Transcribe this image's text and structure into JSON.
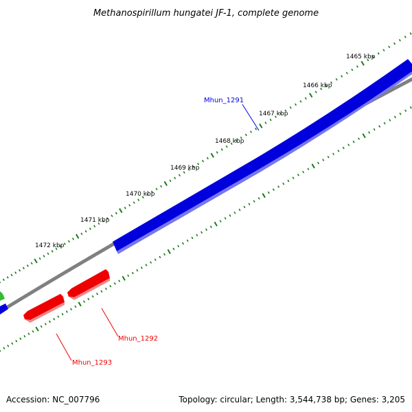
{
  "title": "Methanospirillum hungatei JF-1, complete genome",
  "footer": {
    "accession": "Accession: NC_007796",
    "summary": "Topology: circular; Length: 3,544,738 bp; Genes: 3,205"
  },
  "ticks": [
    "1465 kbp",
    "1466 kbp",
    "1467 kbp",
    "1468 kbp",
    "1469 kbp",
    "1470 kbp",
    "1471 kbp",
    "1472 kbp"
  ],
  "genes": [
    {
      "name": "Mhun_1291",
      "strand": "forward",
      "color": "#0000dd"
    },
    {
      "name": "Mhun_1292",
      "strand": "reverse",
      "color": "#ee0000"
    },
    {
      "name": "Mhun_1293",
      "strand": "reverse",
      "color": "#ee0000"
    }
  ],
  "colors": {
    "backbone": "#808080",
    "tick_marks": "#1a7a1a",
    "forward_gene": "#0000dd",
    "reverse_gene": "#ee0000",
    "edge_gene": "#33bb33"
  }
}
